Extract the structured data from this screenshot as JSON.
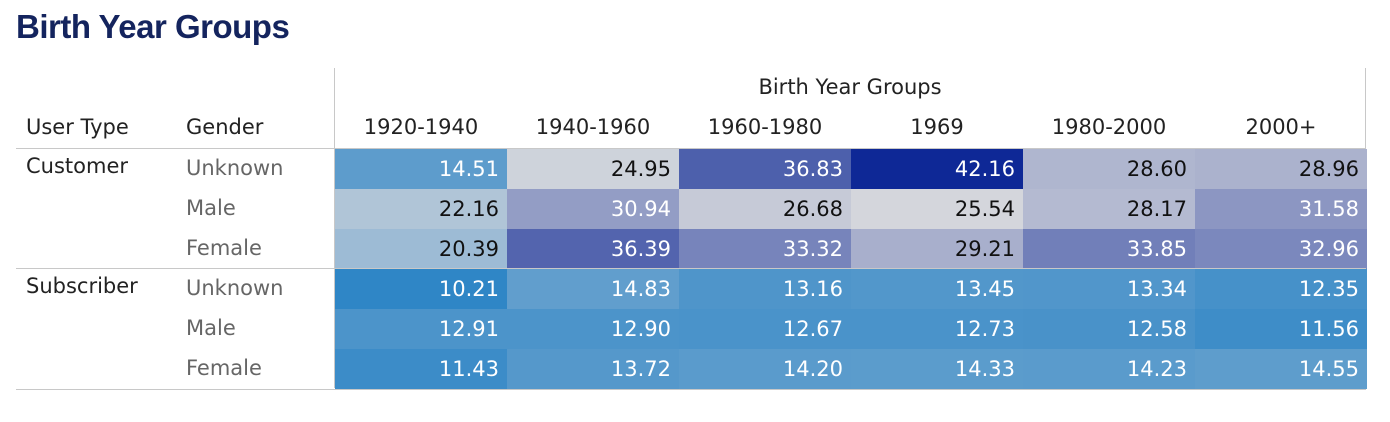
{
  "title": "Birth Year Groups",
  "chart_data": {
    "type": "heatmap",
    "title": "Birth Year Groups",
    "column_group_label": "Birth Year Groups",
    "row_headers": [
      "User Type",
      "Gender"
    ],
    "columns": [
      "1920-1940",
      "1940-1960",
      "1960-1980",
      "1969",
      "1980-2000",
      "2000+"
    ],
    "row_groups": [
      {
        "name": "Customer",
        "rows": [
          {
            "gender": "Unknown",
            "values": [
              14.51,
              24.95,
              36.83,
              42.16,
              28.6,
              28.96
            ],
            "display": [
              "14.51",
              "24.95",
              "36.83",
              "42.16",
              "28.60",
              "28.96"
            ]
          },
          {
            "gender": "Male",
            "values": [
              22.16,
              30.94,
              26.68,
              25.54,
              28.17,
              31.58
            ],
            "display": [
              "22.16",
              "30.94",
              "26.68",
              "25.54",
              "28.17",
              "31.58"
            ]
          },
          {
            "gender": "Female",
            "values": [
              20.39,
              36.39,
              33.32,
              29.21,
              33.85,
              32.96
            ],
            "display": [
              "20.39",
              "36.39",
              "33.32",
              "29.21",
              "33.85",
              "32.96"
            ]
          }
        ]
      },
      {
        "name": "Subscriber",
        "rows": [
          {
            "gender": "Unknown",
            "values": [
              10.21,
              14.83,
              13.16,
              13.45,
              13.34,
              12.35
            ],
            "display": [
              "10.21",
              "14.83",
              "13.16",
              "13.45",
              "13.34",
              "12.35"
            ]
          },
          {
            "gender": "Male",
            "values": [
              12.91,
              12.9,
              12.67,
              12.73,
              12.58,
              11.56
            ],
            "display": [
              "12.91",
              "12.90",
              "12.67",
              "12.73",
              "12.58",
              "11.56"
            ]
          },
          {
            "gender": "Female",
            "values": [
              11.43,
              13.72,
              14.2,
              14.33,
              14.23,
              14.55
            ],
            "display": [
              "11.43",
              "13.72",
              "14.20",
              "14.33",
              "14.23",
              "14.55"
            ]
          }
        ]
      }
    ],
    "colors": {
      "low": "#2f86c6",
      "mid": "#d4d6dc",
      "high": "#0e2896"
    }
  }
}
